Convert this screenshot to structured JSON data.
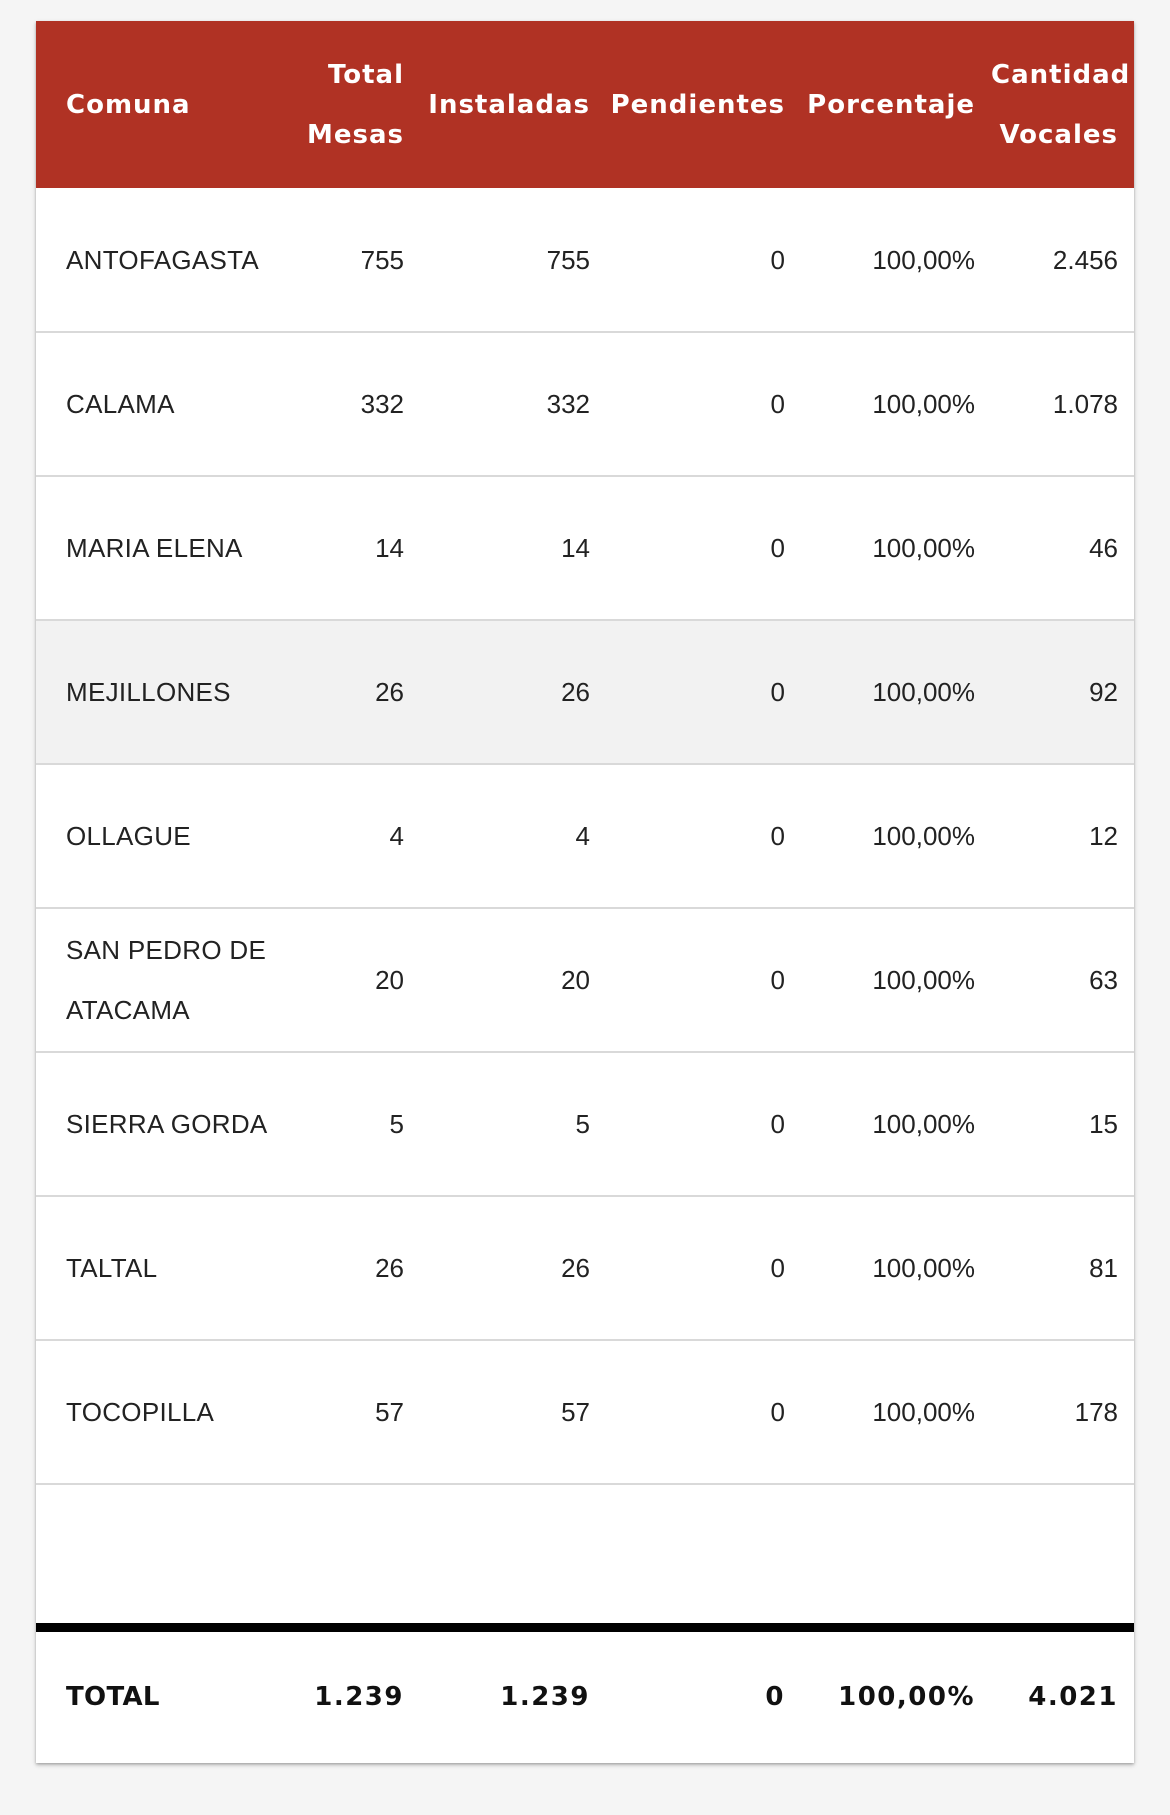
{
  "headers": {
    "comuna": "Comuna",
    "total_mesas_1": "Total",
    "total_mesas_2": "Mesas",
    "instaladas": "Instaladas",
    "pendientes": "Pendientes",
    "porcentaje": "Porcentaje",
    "cantidad_vocales_1": "Cantidad",
    "cantidad_vocales_2": "Vocales"
  },
  "rows": [
    {
      "comuna": "ANTOFAGASTA",
      "total": "755",
      "instaladas": "755",
      "pendientes": "0",
      "porcentaje": "100,00%",
      "vocales": "2.456"
    },
    {
      "comuna": "CALAMA",
      "total": "332",
      "instaladas": "332",
      "pendientes": "0",
      "porcentaje": "100,00%",
      "vocales": "1.078"
    },
    {
      "comuna": "MARIA ELENA",
      "total": "14",
      "instaladas": "14",
      "pendientes": "0",
      "porcentaje": "100,00%",
      "vocales": "46"
    },
    {
      "comuna": "MEJILLONES",
      "total": "26",
      "instaladas": "26",
      "pendientes": "0",
      "porcentaje": "100,00%",
      "vocales": "92"
    },
    {
      "comuna": "OLLAGUE",
      "total": "4",
      "instaladas": "4",
      "pendientes": "0",
      "porcentaje": "100,00%",
      "vocales": "12"
    },
    {
      "comuna_1": "SAN PEDRO DE",
      "comuna_2": "ATACAMA",
      "total": "20",
      "instaladas": "20",
      "pendientes": "0",
      "porcentaje": "100,00%",
      "vocales": "63"
    },
    {
      "comuna": "SIERRA GORDA",
      "total": "5",
      "instaladas": "5",
      "pendientes": "0",
      "porcentaje": "100,00%",
      "vocales": "15"
    },
    {
      "comuna": "TALTAL",
      "total": "26",
      "instaladas": "26",
      "pendientes": "0",
      "porcentaje": "100,00%",
      "vocales": "81"
    },
    {
      "comuna": "TOCOPILLA",
      "total": "57",
      "instaladas": "57",
      "pendientes": "0",
      "porcentaje": "100,00%",
      "vocales": "178"
    }
  ],
  "total": {
    "label": "TOTAL",
    "total": "1.239",
    "instaladas": "1.239",
    "pendientes": "0",
    "porcentaje": "100,00%",
    "vocales": "4.021"
  },
  "colors": {
    "header_bg": "#b03224",
    "highlight_row": "#f2f2f2"
  }
}
